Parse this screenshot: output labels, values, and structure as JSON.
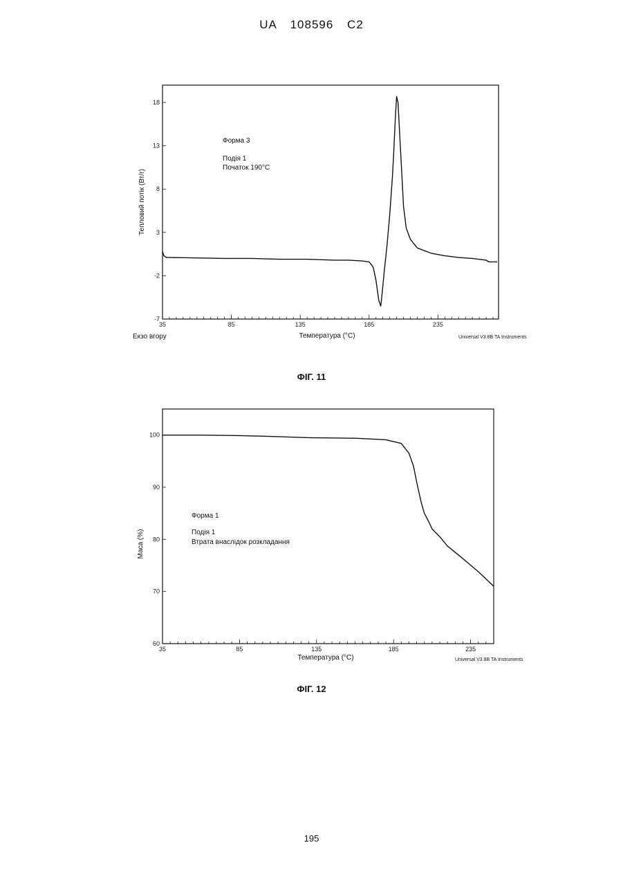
{
  "header": {
    "text": "UA 108596 C2"
  },
  "page_number": "195",
  "chart_data": [
    {
      "type": "line",
      "figure_label": "ФІГ. 11",
      "xlabel": "Температура (°C)",
      "ylabel": "Тепловий потік (Вт/г)",
      "corner_note": "Universal V3.8B TA Instruments",
      "y_direction_note": "Екзо вгору",
      "annotations": [
        "Форма 3",
        "Подія 1",
        "Початок 190°C"
      ],
      "xlim": [
        35,
        279
      ],
      "ylim": [
        -7,
        20
      ],
      "xticks": [
        35,
        85,
        135,
        185,
        235
      ],
      "yticks": [
        -7,
        -2,
        3,
        8,
        13,
        18
      ],
      "ytick_labels": [
        "-7",
        "-2",
        "3",
        "8",
        "13",
        "18"
      ],
      "grid": false,
      "series": [
        {
          "x": [
            35,
            36,
            38,
            40,
            60,
            80,
            100,
            120,
            140,
            160,
            170,
            180,
            185,
            188,
            190,
            192,
            193,
            193.5,
            194.5,
            196,
            198,
            200,
            202,
            203,
            204,
            205,
            206,
            208,
            210,
            212,
            215,
            220,
            230,
            240,
            250,
            260,
            270,
            272,
            278
          ],
          "y": [
            0.8,
            0.3,
            0.1,
            0.1,
            0.05,
            0.0,
            0.0,
            -0.1,
            -0.1,
            -0.2,
            -0.2,
            -0.3,
            -0.4,
            -1.0,
            -2.5,
            -4.8,
            -5.3,
            -5.5,
            -4.0,
            -1.5,
            1.5,
            5.0,
            9.5,
            12.5,
            16.0,
            18.7,
            18.0,
            12.0,
            6.0,
            3.5,
            2.2,
            1.2,
            0.6,
            0.3,
            0.1,
            0.0,
            -0.2,
            -0.4,
            -0.4
          ]
        }
      ]
    },
    {
      "type": "line",
      "figure_label": "ФІГ. 12",
      "xlabel": "Температура (°C)",
      "ylabel": "Маса (%)",
      "corner_note": "Universal V3.8B TA Instruments",
      "annotations": [
        "Форма 1",
        "Подія 1",
        "Втрата внаслідок розкладання"
      ],
      "xlim": [
        35,
        250
      ],
      "ylim": [
        60,
        105
      ],
      "xticks": [
        35,
        85,
        135,
        185,
        235
      ],
      "yticks": [
        60,
        70,
        80,
        90,
        100
      ],
      "ytick_labels": [
        "60",
        "70",
        "80",
        "90",
        "100"
      ],
      "grid": false,
      "series": [
        {
          "x": [
            35,
            60,
            85,
            110,
            130,
            160,
            180,
            190,
            195,
            198,
            200,
            203,
            205,
            208,
            210,
            215,
            220,
            230,
            240,
            250
          ],
          "y": [
            100,
            100,
            99.9,
            99.7,
            99.5,
            99.4,
            99.1,
            98.4,
            96.5,
            94.0,
            91.0,
            87.0,
            85.0,
            83.3,
            82.0,
            80.5,
            78.7,
            76.3,
            73.8,
            71.0
          ]
        }
      ]
    }
  ]
}
